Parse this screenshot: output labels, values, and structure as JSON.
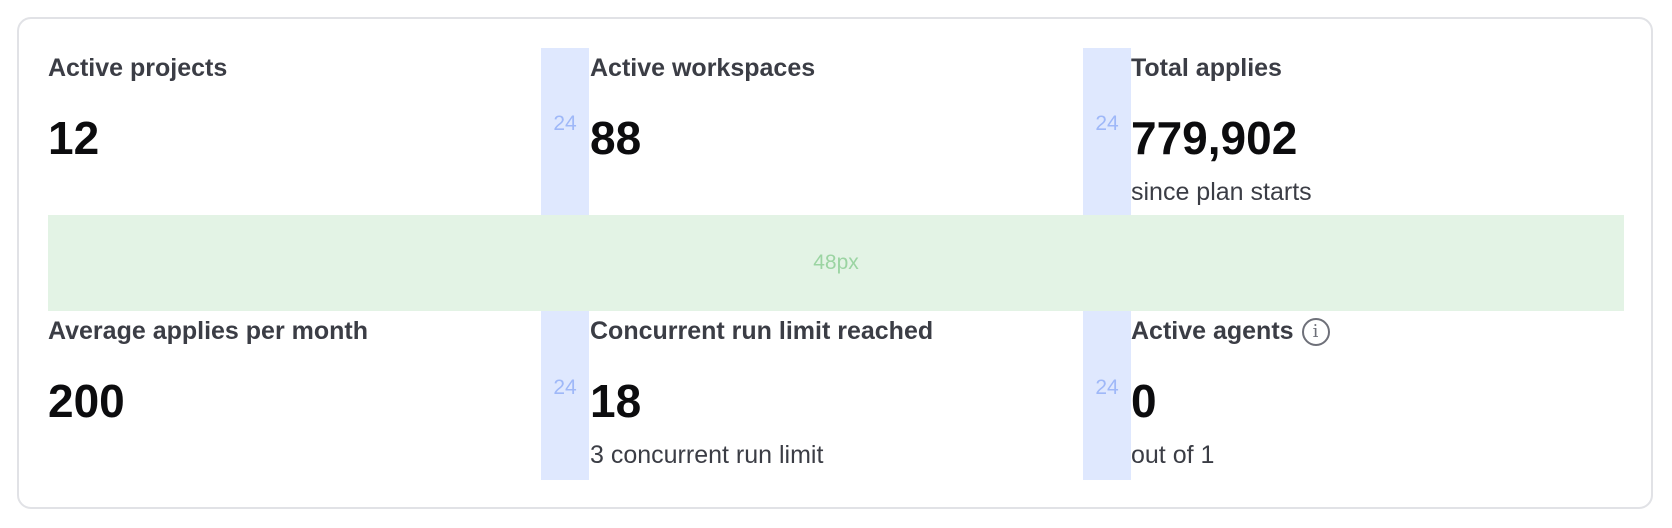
{
  "spacing": {
    "column_gap_label": "24",
    "row_gap_label": "48px"
  },
  "stats": [
    {
      "label": "Active projects",
      "value": "12"
    },
    {
      "label": "Active workspaces",
      "value": "88"
    },
    {
      "label": "Total applies",
      "value": "779,902",
      "sub": "since plan starts"
    },
    {
      "label": "Average applies per month",
      "value": "200"
    },
    {
      "label": "Concurrent run limit reached",
      "value": "18",
      "sub": "3 concurrent run limit"
    },
    {
      "label": "Active agents",
      "value": "0",
      "sub": "out of 1",
      "icon": "info-icon"
    }
  ],
  "colors": {
    "column_gap": "#dfe8fe",
    "row_gap": "#e3f3e5"
  }
}
